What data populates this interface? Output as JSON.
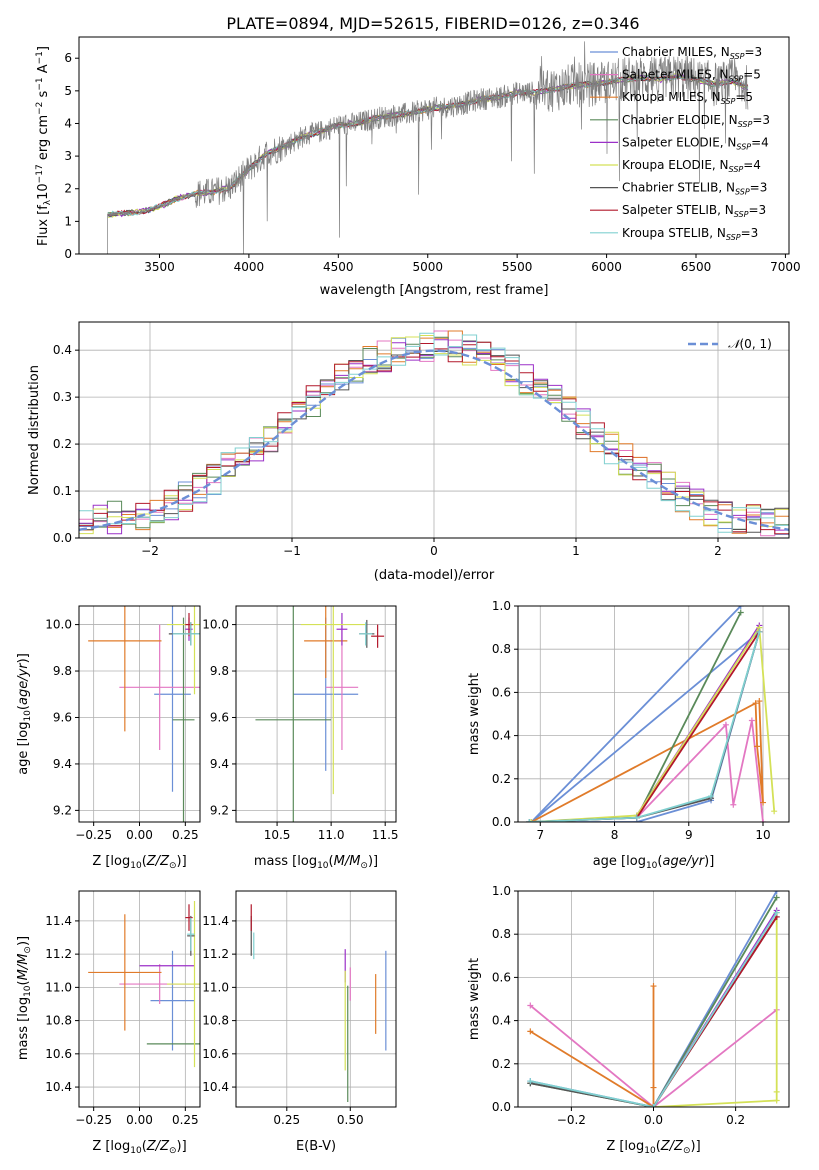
{
  "title": "PLATE=0894, MJD=52615, FIBERID=0126, z=0.346",
  "colors": {
    "Chabrier MILES": "#6b8fd6",
    "Salpeter MILES": "#e377c2",
    "Kroupa MILES": "#e07b2a",
    "Chabrier ELODIE": "#5a8a5a",
    "Salpeter ELODIE": "#9b30c8",
    "Kroupa ELODIE": "#d4e157",
    "Chabrier STELIB": "#555555",
    "Salpeter STELIB": "#b2182b",
    "Kroupa STELIB": "#80d0d0"
  },
  "legend_spectrum": [
    {
      "text": "Chabrier MILES, N",
      "sub": "SSP",
      "tail": "=3"
    },
    {
      "text": "Salpeter MILES, N",
      "sub": "SSP",
      "tail": "=5"
    },
    {
      "text": "Kroupa MILES, N",
      "sub": "SSP",
      "tail": "=5"
    },
    {
      "text": "Chabrier ELODIE, N",
      "sub": "SSP",
      "tail": "=3"
    },
    {
      "text": "Salpeter ELODIE, N",
      "sub": "SSP",
      "tail": "=4"
    },
    {
      "text": "Kroupa ELODIE, N",
      "sub": "SSP",
      "tail": "=4"
    },
    {
      "text": "Chabrier STELIB, N",
      "sub": "SSP",
      "tail": "=3"
    },
    {
      "text": "Salpeter STELIB, N",
      "sub": "SSP",
      "tail": "=3"
    },
    {
      "text": "Kroupa STELIB, N",
      "sub": "SSP",
      "tail": "=3"
    }
  ],
  "chart_data": [
    {
      "id": "spectrum",
      "type": "line",
      "xlabel": "wavelength [Angstrom, rest frame]",
      "ylabel": "Flux [fλ10⁻¹⁷ erg cm⁻² s⁻¹ A⁻¹]",
      "xlim": [
        3050,
        7020
      ],
      "ylim": [
        0,
        6.65
      ],
      "xticks": [
        3500,
        4000,
        4500,
        5000,
        5500,
        6000,
        6500,
        7000
      ],
      "yticks": [
        0,
        1,
        2,
        3,
        4,
        5,
        6
      ],
      "data_range": [
        3210,
        6790
      ],
      "continuum": {
        "x": [
          3210,
          3300,
          3400,
          3500,
          3600,
          3700,
          3800,
          3900,
          4000,
          4100,
          4200,
          4300,
          4400,
          4500,
          4600,
          4700,
          4800,
          4900,
          5000,
          5100,
          5200,
          5300,
          5400,
          5500,
          5600,
          5700,
          5800,
          5900,
          6000,
          6100,
          6200,
          6300,
          6400,
          6500,
          6600,
          6700,
          6790
        ],
        "y": [
          1.2,
          1.25,
          1.3,
          1.45,
          1.7,
          1.85,
          1.9,
          2.05,
          2.6,
          3.1,
          3.3,
          3.6,
          3.75,
          3.95,
          4.0,
          4.15,
          4.25,
          4.3,
          4.45,
          4.5,
          4.6,
          4.75,
          4.8,
          4.95,
          4.95,
          5.05,
          5.15,
          5.2,
          5.25,
          5.35,
          5.4,
          5.35,
          5.45,
          5.35,
          5.2,
          5.3,
          5.1
        ]
      },
      "series_names": [
        "Chabrier MILES",
        "Salpeter MILES",
        "Kroupa MILES",
        "Chabrier ELODIE",
        "Salpeter ELODIE",
        "Kroupa ELODIE",
        "Chabrier STELIB",
        "Salpeter STELIB",
        "Kroupa STELIB"
      ]
    },
    {
      "id": "residuals",
      "type": "line",
      "xlabel": "(data-model)/error",
      "ylabel": "Normed distribution",
      "xlim": [
        -2.5,
        2.5
      ],
      "ylim": [
        0,
        0.46
      ],
      "xticks": [
        -2,
        -1,
        0,
        1,
        2
      ],
      "yticks": [
        0.0,
        0.1,
        0.2,
        0.3,
        0.4
      ],
      "grid": true,
      "bin_width": 0.1,
      "gaussian": {
        "name": "N(0,1)",
        "mean": 0,
        "sigma": 1
      }
    },
    {
      "id": "age-vs-Z",
      "type": "scatter",
      "xlabel": "Z [log10(Z/Z⊙)]",
      "ylabel": "age [log10(age/yr)]",
      "xlim": [
        -0.33,
        0.33
      ],
      "ylim": [
        9.15,
        10.08
      ],
      "xticks": [
        -0.25,
        0.0,
        0.25
      ],
      "yticks": [
        9.2,
        9.4,
        9.6,
        9.8,
        10.0
      ],
      "points": [
        {
          "s": "Chabrier MILES",
          "x": 0.18,
          "y": 9.7,
          "ex": 0.1,
          "ey": 0.42
        },
        {
          "s": "Salpeter MILES",
          "x": 0.11,
          "y": 9.73,
          "ex": 0.22,
          "ey": 0.27
        },
        {
          "s": "Kroupa MILES",
          "x": -0.08,
          "y": 9.93,
          "ex": 0.2,
          "ey": 0.39
        },
        {
          "s": "Chabrier ELODIE",
          "x": 0.24,
          "y": 9.59,
          "ex": 0.06,
          "ey": 0.44
        },
        {
          "s": "Salpeter ELODIE",
          "x": 0.27,
          "y": 9.98,
          "ex": 0.02,
          "ey": 0.05
        },
        {
          "s": "Kroupa ELODIE",
          "x": 0.3,
          "y": 10.0,
          "ex": 0.15,
          "ey": 0.3
        },
        {
          "s": "Chabrier STELIB",
          "x": 0.28,
          "y": 9.96,
          "ex": 0.12,
          "ey": 0.05
        },
        {
          "s": "Salpeter STELIB",
          "x": 0.27,
          "y": 10.0,
          "ex": 0.02,
          "ey": 0.05
        },
        {
          "s": "Kroupa STELIB",
          "x": 0.28,
          "y": 9.96,
          "ex": 0.1,
          "ey": 0.05
        }
      ]
    },
    {
      "id": "age-vs-mass",
      "type": "scatter",
      "xlabel": "mass [log10(M/M⊙)]",
      "ylabel": "",
      "xlim": [
        10.12,
        11.6
      ],
      "ylim": [
        9.15,
        10.08
      ],
      "xticks": [
        10.5,
        11.0,
        11.5
      ],
      "yticks": [
        9.2,
        9.4,
        9.6,
        9.8,
        10.0
      ],
      "points": [
        {
          "s": "Chabrier MILES",
          "x": 10.95,
          "y": 9.7,
          "ex": 0.3,
          "ey": 0.33
        },
        {
          "s": "Salpeter MILES",
          "x": 11.1,
          "y": 9.73,
          "ex": 0.15,
          "ey": 0.27
        },
        {
          "s": "Kroupa MILES",
          "x": 10.95,
          "y": 9.93,
          "ex": 0.2,
          "ey": 0.16
        },
        {
          "s": "Chabrier ELODIE",
          "x": 10.65,
          "y": 9.59,
          "ex": 0.35,
          "ey": 0.51
        },
        {
          "s": "Salpeter ELODIE",
          "x": 11.1,
          "y": 9.98,
          "ex": 0.05,
          "ey": 0.07
        },
        {
          "s": "Kroupa ELODIE",
          "x": 11.02,
          "y": 10.0,
          "ex": 0.3,
          "ey": 0.73
        },
        {
          "s": "Chabrier STELIB",
          "x": 11.33,
          "y": 9.96,
          "ex": 0.07,
          "ey": 0.06
        },
        {
          "s": "Salpeter STELIB",
          "x": 11.43,
          "y": 9.95,
          "ex": 0.06,
          "ey": 0.05
        },
        {
          "s": "Kroupa STELIB",
          "x": 11.32,
          "y": 9.96,
          "ex": 0.06,
          "ey": 0.05
        }
      ]
    },
    {
      "id": "weight-vs-age",
      "type": "line",
      "xlabel": "age [log10(age/yr)]",
      "ylabel": "mass weight",
      "xlim": [
        6.7,
        10.35
      ],
      "ylim": [
        0,
        1.0
      ],
      "xticks": [
        7,
        8,
        9,
        10
      ],
      "yticks": [
        0.0,
        0.2,
        0.4,
        0.6,
        0.8,
        1.0
      ],
      "grid": true,
      "series": [
        {
          "name": "Chabrier MILES",
          "pts": [
            [
              6.85,
              0.0
            ],
            [
              8.3,
              0.0
            ],
            [
              9.3,
              0.1
            ],
            [
              9.95,
              0.88
            ],
            [
              6.88,
              0.0
            ],
            [
              9.7,
              1.0
            ]
          ]
        },
        {
          "name": "Salpeter MILES",
          "pts": [
            [
              6.88,
              0.0
            ],
            [
              8.3,
              0.02
            ],
            [
              9.5,
              0.45
            ],
            [
              9.6,
              0.08
            ],
            [
              9.85,
              0.47
            ],
            [
              10.0,
              0.0
            ]
          ]
        },
        {
          "name": "Kroupa MILES",
          "pts": [
            [
              6.88,
              0.0
            ],
            [
              9.9,
              0.55
            ],
            [
              9.92,
              0.35
            ],
            [
              10.0,
              0.09
            ],
            [
              9.95,
              0.56
            ]
          ]
        },
        {
          "name": "Chabrier ELODIE",
          "pts": [
            [
              6.88,
              0.0
            ],
            [
              8.3,
              0.02
            ],
            [
              9.7,
              0.97
            ]
          ]
        },
        {
          "name": "Salpeter ELODIE",
          "pts": [
            [
              8.3,
              0.03
            ],
            [
              9.95,
              0.91
            ]
          ]
        },
        {
          "name": "Kroupa ELODIE",
          "pts": [
            [
              6.88,
              0.0
            ],
            [
              8.3,
              0.03
            ],
            [
              9.95,
              0.9
            ],
            [
              10.15,
              0.05
            ]
          ]
        },
        {
          "name": "Chabrier STELIB",
          "pts": [
            [
              6.85,
              0.0
            ],
            [
              8.3,
              0.02
            ],
            [
              9.3,
              0.11
            ],
            [
              9.95,
              0.88
            ]
          ]
        },
        {
          "name": "Salpeter STELIB",
          "pts": [
            [
              8.3,
              0.02
            ],
            [
              9.95,
              0.88
            ]
          ]
        },
        {
          "name": "Kroupa STELIB",
          "pts": [
            [
              6.85,
              0.0
            ],
            [
              8.3,
              0.02
            ],
            [
              9.3,
              0.12
            ],
            [
              9.95,
              0.88
            ]
          ]
        }
      ]
    },
    {
      "id": "mass-vs-Z",
      "type": "scatter",
      "xlabel": "Z [log10(Z/Z⊙)]",
      "ylabel": "mass [log10(M/M⊙)]",
      "xlim": [
        -0.33,
        0.33
      ],
      "ylim": [
        10.28,
        11.58
      ],
      "xticks": [
        -0.25,
        0.0,
        0.25
      ],
      "yticks": [
        10.4,
        10.6,
        10.8,
        11.0,
        11.2,
        11.4
      ],
      "points": [
        {
          "s": "Chabrier MILES",
          "x": 0.18,
          "y": 10.92,
          "ex": 0.12,
          "ey": 0.3
        },
        {
          "s": "Salpeter MILES",
          "x": 0.11,
          "y": 11.02,
          "ex": 0.22,
          "ey": 0.12
        },
        {
          "s": "Kroupa MILES",
          "x": -0.08,
          "y": 11.09,
          "ex": 0.2,
          "ey": 0.35
        },
        {
          "s": "Chabrier ELODIE",
          "x": 0.24,
          "y": 10.66,
          "ex": 0.2,
          "ey": 0.0
        },
        {
          "s": "Salpeter ELODIE",
          "x": 0.15,
          "y": 11.13,
          "ex": 0.15,
          "ey": 0.0
        },
        {
          "s": "Kroupa ELODIE",
          "x": 0.3,
          "y": 11.02,
          "ex": 0.15,
          "ey": 0.5
        },
        {
          "s": "Chabrier STELIB",
          "x": 0.28,
          "y": 11.31,
          "ex": 0.02,
          "ey": 0.12
        },
        {
          "s": "Salpeter STELIB",
          "x": 0.27,
          "y": 11.42,
          "ex": 0.02,
          "ey": 0.08
        },
        {
          "s": "Kroupa STELIB",
          "x": 0.28,
          "y": 11.32,
          "ex": 0.02,
          "ey": 0.1
        }
      ]
    },
    {
      "id": "mass-vs-EBV",
      "type": "scatter",
      "xlabel": "E(B-V)",
      "ylabel": "",
      "xlim": [
        0.05,
        0.68
      ],
      "ylim": [
        10.28,
        11.58
      ],
      "xticks": [
        0.25,
        0.5
      ],
      "yticks": [
        10.4,
        10.6,
        10.8,
        11.0,
        11.2,
        11.4
      ],
      "points": [
        {
          "s": "Chabrier MILES",
          "x": 0.64,
          "y": 10.92,
          "ex": 0,
          "ey": 0.3
        },
        {
          "s": "Salpeter MILES",
          "x": 0.5,
          "y": 11.02,
          "ex": 0,
          "ey": 0.1
        },
        {
          "s": "Kroupa MILES",
          "x": 0.6,
          "y": 10.9,
          "ex": 0,
          "ey": 0.18
        },
        {
          "s": "Chabrier ELODIE",
          "x": 0.49,
          "y": 10.66,
          "ex": 0,
          "ey": 0.35
        },
        {
          "s": "Salpeter ELODIE",
          "x": 0.48,
          "y": 11.13,
          "ex": 0,
          "ey": 0.1
        },
        {
          "s": "Kroupa ELODIE",
          "x": 0.48,
          "y": 10.8,
          "ex": 0,
          "ey": 0.3
        },
        {
          "s": "Chabrier STELIB",
          "x": 0.11,
          "y": 11.31,
          "ex": 0,
          "ey": 0.12
        },
        {
          "s": "Salpeter STELIB",
          "x": 0.11,
          "y": 11.42,
          "ex": 0,
          "ey": 0.08
        },
        {
          "s": "Kroupa STELIB",
          "x": 0.12,
          "y": 11.25,
          "ex": 0,
          "ey": 0.08
        }
      ]
    },
    {
      "id": "weight-vs-Z",
      "type": "line",
      "xlabel": "Z [log10(Z/Z⊙)]",
      "ylabel": "mass weight",
      "xlim": [
        -0.33,
        0.33
      ],
      "ylim": [
        0,
        1.0
      ],
      "xticks": [
        -0.2,
        0.0,
        0.2
      ],
      "yticks": [
        0.0,
        0.2,
        0.4,
        0.6,
        0.8,
        1.0
      ],
      "grid": true,
      "series": [
        {
          "name": "Chabrier MILES",
          "pts": [
            [
              -0.3,
              0.12
            ],
            [
              0.0,
              0.0
            ],
            [
              0.3,
              1.0
            ]
          ]
        },
        {
          "name": "Salpeter MILES",
          "pts": [
            [
              -0.3,
              0.47
            ],
            [
              0.0,
              0.0
            ],
            [
              0.3,
              0.45
            ]
          ]
        },
        {
          "name": "Kroupa MILES",
          "pts": [
            [
              -0.3,
              0.35
            ],
            [
              0.0,
              0.0
            ],
            [
              0.0,
              0.56
            ],
            [
              0.0,
              0.09
            ]
          ]
        },
        {
          "name": "Chabrier ELODIE",
          "pts": [
            [
              -0.3,
              0.11
            ],
            [
              0.0,
              0.0
            ],
            [
              0.3,
              0.97
            ]
          ]
        },
        {
          "name": "Salpeter ELODIE",
          "pts": [
            [
              0.0,
              0.0
            ],
            [
              0.3,
              0.91
            ]
          ]
        },
        {
          "name": "Kroupa ELODIE",
          "pts": [
            [
              0.0,
              0.0
            ],
            [
              0.3,
              0.03
            ],
            [
              0.3,
              0.9
            ],
            [
              0.3,
              0.07
            ]
          ]
        },
        {
          "name": "Chabrier STELIB",
          "pts": [
            [
              -0.3,
              0.11
            ],
            [
              0.0,
              0.0
            ],
            [
              0.3,
              0.88
            ]
          ]
        },
        {
          "name": "Salpeter STELIB",
          "pts": [
            [
              0.0,
              0.0
            ],
            [
              0.3,
              0.88
            ]
          ]
        },
        {
          "name": "Kroupa STELIB",
          "pts": [
            [
              -0.3,
              0.12
            ],
            [
              0.0,
              0.0
            ],
            [
              0.3,
              0.9
            ]
          ]
        }
      ]
    }
  ]
}
